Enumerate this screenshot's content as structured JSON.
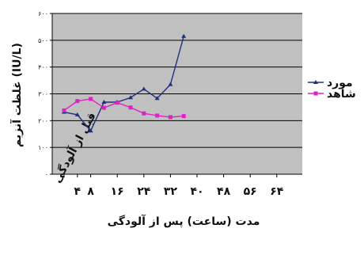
{
  "chart_data": {
    "type": "line",
    "title": "",
    "ylabel": "غلظت آنزیم (IU/L)",
    "xlabel": "مدت (ساعت) پس از آلودگی",
    "ylim": [
      0,
      600
    ],
    "y_ticks": [
      "۰",
      "۱۰۰",
      "۲۰۰",
      "۳۰۰",
      "۴۰۰",
      "۵۰۰",
      "۶۰۰"
    ],
    "grid": true,
    "legend_position": "right",
    "categories": [
      "قبل از آلودگی",
      "۴",
      "۸",
      "۱۶",
      "۲۴",
      "۳۲",
      "۴۰",
      "۴۸",
      "۵۶",
      "۶۴"
    ],
    "x_positions": [
      0,
      4,
      8,
      12,
      16,
      20,
      24,
      28,
      32,
      36,
      40,
      44,
      48,
      52,
      56,
      60,
      64
    ],
    "x_label_positions": [
      0,
      4,
      8,
      16,
      24,
      32,
      40,
      48,
      56,
      64
    ],
    "series": [
      {
        "name": "مورد",
        "color": "#1f2f7a",
        "marker": "triangle",
        "values": [
          232,
          222,
          162,
          269,
          269,
          286,
          318,
          283,
          335,
          515
        ]
      },
      {
        "name": "شاهد",
        "color": "#e020c8",
        "marker": "square",
        "values": [
          238,
          273,
          281,
          248,
          267,
          249,
          227,
          219,
          213,
          217
        ]
      }
    ]
  }
}
